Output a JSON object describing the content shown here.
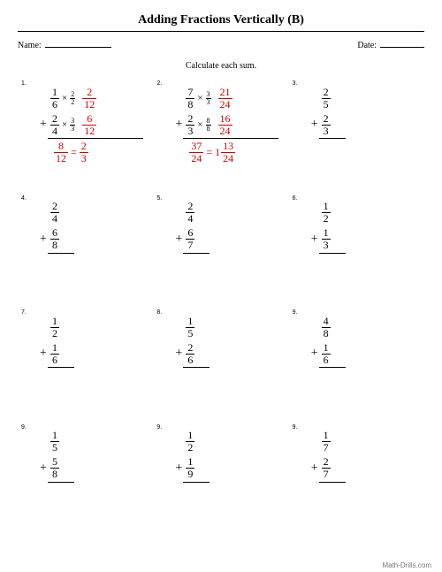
{
  "title": "Adding Fractions Vertically (B)",
  "name_label": "Name:",
  "date_label": "Date:",
  "instruction": "Calculate each sum.",
  "footer": "Math-Drills.com",
  "background_color": "#ffffff",
  "text_color": "#000000",
  "answer_color": "#cc0000",
  "problems": [
    {
      "num": "1.",
      "f1": {
        "n": "1",
        "d": "6"
      },
      "mult1": {
        "n": "2",
        "d": "2"
      },
      "r1": {
        "n": "2",
        "d": "12"
      },
      "f2": {
        "n": "2",
        "d": "4"
      },
      "mult2": {
        "n": "3",
        "d": "3"
      },
      "r2": {
        "n": "6",
        "d": "12"
      },
      "sum": {
        "n": "8",
        "d": "12"
      },
      "eq": "=",
      "simp": {
        "n": "2",
        "d": "3"
      },
      "worked": true
    },
    {
      "num": "2.",
      "f1": {
        "n": "7",
        "d": "8"
      },
      "mult1": {
        "n": "3",
        "d": "3"
      },
      "r1": {
        "n": "21",
        "d": "24"
      },
      "f2": {
        "n": "2",
        "d": "3"
      },
      "mult2": {
        "n": "8",
        "d": "8"
      },
      "r2": {
        "n": "16",
        "d": "24"
      },
      "sum": {
        "n": "37",
        "d": "24"
      },
      "eq": "=",
      "whole": "1",
      "simp": {
        "n": "13",
        "d": "24"
      },
      "worked": true
    },
    {
      "num": "3.",
      "f1": {
        "n": "2",
        "d": "5"
      },
      "f2": {
        "n": "2",
        "d": "3"
      }
    },
    {
      "num": "4.",
      "f1": {
        "n": "2",
        "d": "4"
      },
      "f2": {
        "n": "6",
        "d": "8"
      }
    },
    {
      "num": "5.",
      "f1": {
        "n": "2",
        "d": "4"
      },
      "f2": {
        "n": "6",
        "d": "7"
      }
    },
    {
      "num": "6.",
      "f1": {
        "n": "1",
        "d": "2"
      },
      "f2": {
        "n": "1",
        "d": "3"
      }
    },
    {
      "num": "7.",
      "f1": {
        "n": "1",
        "d": "2"
      },
      "f2": {
        "n": "1",
        "d": "6"
      }
    },
    {
      "num": "8.",
      "f1": {
        "n": "1",
        "d": "5"
      },
      "f2": {
        "n": "2",
        "d": "6"
      }
    },
    {
      "num": "9.",
      "f1": {
        "n": "4",
        "d": "8"
      },
      "f2": {
        "n": "1",
        "d": "6"
      }
    },
    {
      "num": "9.",
      "f1": {
        "n": "1",
        "d": "5"
      },
      "f2": {
        "n": "5",
        "d": "8"
      }
    },
    {
      "num": "9.",
      "f1": {
        "n": "1",
        "d": "2"
      },
      "f2": {
        "n": "1",
        "d": "9"
      }
    },
    {
      "num": "9.",
      "f1": {
        "n": "1",
        "d": "7"
      },
      "f2": {
        "n": "2",
        "d": "7"
      }
    }
  ]
}
